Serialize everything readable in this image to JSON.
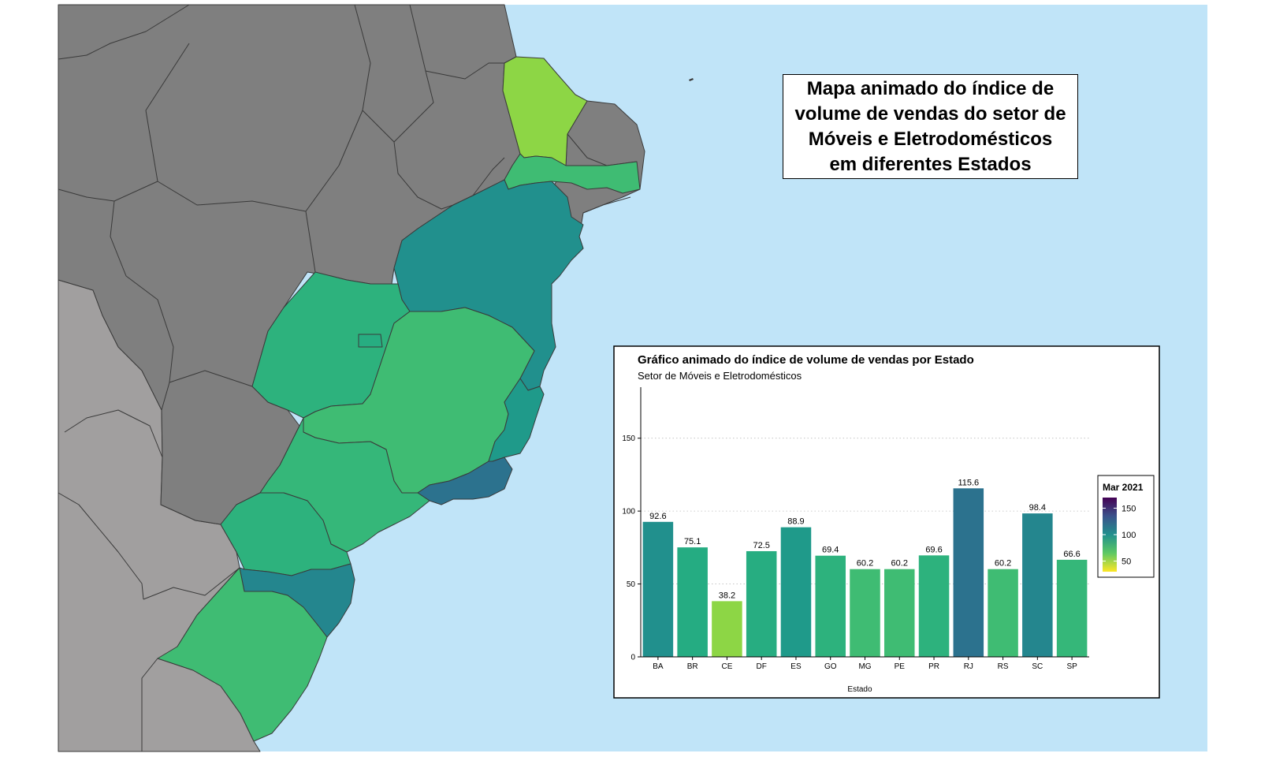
{
  "map": {
    "title_lines": [
      "Mapa animado do índice de",
      "volume de vendas do setor de",
      "Móveis e Eletrodomésticos",
      "em diferentes Estados"
    ],
    "colors": {
      "ocean": "#c0e4f8",
      "other_brazil_state": "#7f7f7f",
      "neighbor_country": "#a19f9f",
      "border": "#3a3a3a"
    },
    "states": [
      {
        "code": "CE",
        "value": 38.2,
        "color": "#8dd645"
      },
      {
        "code": "PE",
        "value": 60.2,
        "color": "#3fbc73"
      },
      {
        "code": "BA",
        "value": 92.6,
        "color": "#21908d"
      },
      {
        "code": "GO",
        "value": 69.4,
        "color": "#2db27d"
      },
      {
        "code": "DF",
        "value": 72.5,
        "color": "#27ad81"
      },
      {
        "code": "MG",
        "value": 60.2,
        "color": "#3fbc73"
      },
      {
        "code": "ES",
        "value": 88.9,
        "color": "#1f9a8a"
      },
      {
        "code": "RJ",
        "value": 115.6,
        "color": "#2c728e"
      },
      {
        "code": "SP",
        "value": 66.6,
        "color": "#35b779"
      },
      {
        "code": "PR",
        "value": 69.6,
        "color": "#2db27d"
      },
      {
        "code": "SC",
        "value": 98.4,
        "color": "#24868e"
      },
      {
        "code": "RS",
        "value": 60.2,
        "color": "#3fbc73"
      }
    ]
  },
  "chart": {
    "title": "Gráfico animado do índice de volume de vendas por Estado",
    "subtitle": "Setor de Móveis e Eletrodomésticos",
    "legend_title": "Mar 2021"
  },
  "chart_data": {
    "type": "bar",
    "title": "Gráfico animado do índice de volume de vendas por Estado",
    "subtitle": "Setor de Móveis e Eletrodomésticos",
    "xlabel": "Estado",
    "ylabel": "",
    "categories": [
      "BA",
      "BR",
      "CE",
      "DF",
      "ES",
      "GO",
      "MG",
      "PE",
      "PR",
      "RJ",
      "RS",
      "SC",
      "SP"
    ],
    "values": [
      92.6,
      75.1,
      38.2,
      72.5,
      88.9,
      69.4,
      60.2,
      60.2,
      69.6,
      115.6,
      60.2,
      98.4,
      66.6
    ],
    "value_labels": [
      "92.6",
      "75.1",
      "38.2",
      "72.5",
      "88.9",
      "69.4",
      "60.2",
      "60.2",
      "69.6",
      "115.6",
      "60.2",
      "98.4",
      "66.6"
    ],
    "bar_colors": [
      "#21908d",
      "#25ac82",
      "#8dd645",
      "#27ad81",
      "#1f9a8a",
      "#2db27d",
      "#3fbc73",
      "#3fbc73",
      "#2db27d",
      "#2c728e",
      "#3fbc73",
      "#24868e",
      "#35b779"
    ],
    "ylim": [
      0,
      185
    ],
    "yticks": [
      0,
      50,
      100,
      150
    ],
    "ytick_labels": [
      "0",
      "50",
      "100",
      "150"
    ],
    "grid": "horizontal-dotted",
    "legend": {
      "title": "Mar 2021",
      "placement": "right",
      "labels": [
        "150",
        "100",
        "50"
      ],
      "ticks": [
        150,
        100,
        50
      ],
      "range": [
        30,
        170
      ],
      "colors": [
        "#440154",
        "#3b528b",
        "#21908d",
        "#5dc863",
        "#fde725"
      ]
    }
  }
}
